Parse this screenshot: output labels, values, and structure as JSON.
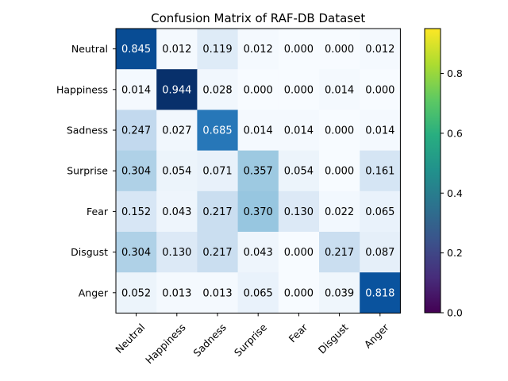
{
  "chart_data": {
    "type": "heatmap",
    "title": "Confusion Matrix of RAF-DB Dataset",
    "xlabel": "",
    "ylabel": "",
    "row_labels": [
      "Neutral",
      "Happiness",
      "Sadness",
      "Surprise",
      "Fear",
      "Disgust",
      "Anger"
    ],
    "col_labels": [
      "Neutral",
      "Happiness",
      "Sadness",
      "Surprise",
      "Fear",
      "Disgust",
      "Anger"
    ],
    "values": [
      [
        0.845,
        0.012,
        0.119,
        0.012,
        0.0,
        0.0,
        0.012
      ],
      [
        0.014,
        0.944,
        0.028,
        0.0,
        0.0,
        0.014,
        0.0
      ],
      [
        0.247,
        0.027,
        0.685,
        0.014,
        0.014,
        0.0,
        0.014
      ],
      [
        0.304,
        0.054,
        0.071,
        0.357,
        0.054,
        0.0,
        0.161
      ],
      [
        0.152,
        0.043,
        0.217,
        0.37,
        0.13,
        0.022,
        0.065
      ],
      [
        0.304,
        0.13,
        0.217,
        0.043,
        0.0,
        0.217,
        0.087
      ],
      [
        0.052,
        0.013,
        0.013,
        0.065,
        0.0,
        0.039,
        0.818
      ]
    ],
    "value_format": "0.000",
    "colormap_matrix": "Blues",
    "colorbar": {
      "colormap": "viridis",
      "range": [
        0,
        0.95
      ],
      "ticks": [
        "0.0",
        "0.2",
        "0.4",
        "0.6",
        "0.8"
      ],
      "tick_values": [
        0.0,
        0.2,
        0.4,
        0.6,
        0.8
      ]
    },
    "grid": false
  }
}
